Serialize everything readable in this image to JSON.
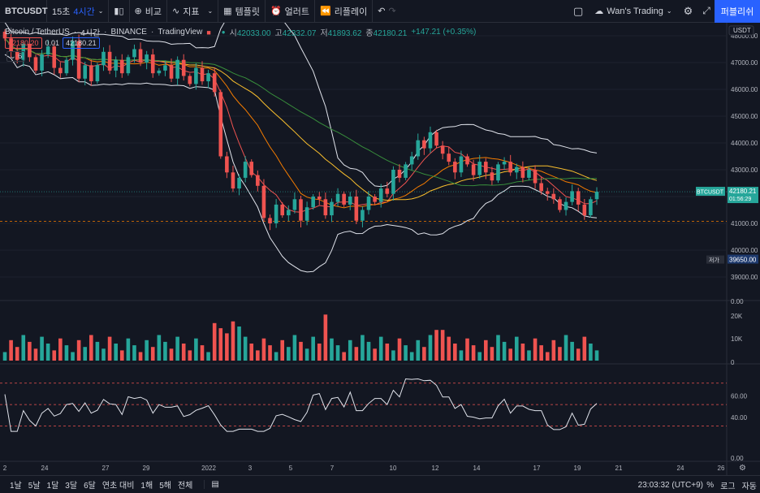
{
  "toolbar": {
    "symbol": "BTCUSDT",
    "interval_15": "15초",
    "interval_4h": "4시간",
    "compare": "비교",
    "indicators": "지표",
    "templates": "템플릿",
    "alert": "얼러트",
    "replay": "리플레이",
    "layout_name": "Wan's Trading",
    "publish": "퍼블리쉬"
  },
  "legend": {
    "title": "Bitcoin / TetherUS",
    "interval": "4시간",
    "exchange": "BINANCE",
    "source": "TradingView",
    "open_label": "시",
    "open": "42033.00",
    "high_label": "고",
    "high": "42332.07",
    "low_label": "저",
    "low": "41893.62",
    "close_label": "종",
    "close": "42180.21",
    "change": "+147.21 (+0.35%)",
    "bid": "42180.20",
    "spread": "0.01",
    "ask": "42180.21",
    "collapse_count": "6"
  },
  "axis": {
    "currency": "USDT",
    "price_ticks": [
      "48000.00",
      "47000.00",
      "46000.00",
      "45000.00",
      "44000.00",
      "43000.00",
      "42000.00",
      "41000.00",
      "40000.00",
      "39000.00"
    ],
    "last_symbol": "BTCUSDT",
    "last_price": "42180.21",
    "countdown": "01:56:29",
    "low_label": "저가",
    "low_price": "39650.00",
    "vol_ticks": [
      "0.00",
      "20K",
      "10K",
      "0"
    ],
    "rsi_ticks": [
      "60.00",
      "40.00",
      "0.00"
    ],
    "date_ticks": [
      "2",
      "24",
      "27",
      "29",
      "2022",
      "3",
      "5",
      "7",
      "10",
      "12",
      "14",
      "17",
      "19",
      "21",
      "24",
      "26"
    ]
  },
  "bottombar": {
    "ranges": [
      "1날",
      "5날",
      "1달",
      "3달",
      "6달",
      "연초 대비",
      "1해",
      "5해",
      "전체"
    ],
    "clock": "23:03:32 (UTC+9)",
    "percent": "%",
    "log": "로그",
    "auto": "자동"
  },
  "colors": {
    "up": "#26a69a",
    "down": "#ef5350",
    "accent": "#2962ff",
    "bg": "#131722"
  },
  "chart_data": {
    "type": "candlestick",
    "symbol": "BTCUSDT",
    "timeframe": "4시간",
    "ylim": [
      38600,
      48500
    ],
    "price_path": [
      47900,
      47400,
      47100,
      47700,
      47200,
      46700,
      47300,
      47600,
      46800,
      46600,
      47100,
      47800,
      46400,
      46900,
      46300,
      46900,
      47400,
      46700,
      47100,
      46600,
      47200,
      47500,
      47000,
      47300,
      46600,
      46700,
      46900,
      46400,
      47100,
      46500,
      46200,
      46800,
      46300,
      46600,
      45900,
      43500,
      42900,
      42300,
      42700,
      43300,
      42800,
      42400,
      41200,
      41000,
      41700,
      41300,
      41500,
      41900,
      41100,
      41600,
      42000,
      41900,
      41300,
      41800,
      42100,
      41700,
      42000,
      41100,
      41500,
      42000,
      41800,
      42300,
      42100,
      43000,
      42700,
      43200,
      43500,
      44100,
      43800,
      44400,
      43900,
      43600,
      43300,
      42900,
      43500,
      43200,
      42800,
      43300,
      42900,
      42600,
      43200,
      43300,
      42900,
      43100,
      42700,
      43000,
      42500,
      42200,
      42100,
      41900,
      41500,
      41800,
      42200,
      41700,
      41300,
      41900,
      42180
    ],
    "series": [
      {
        "name": "MA",
        "values_desc": "orange"
      }
    ]
  }
}
